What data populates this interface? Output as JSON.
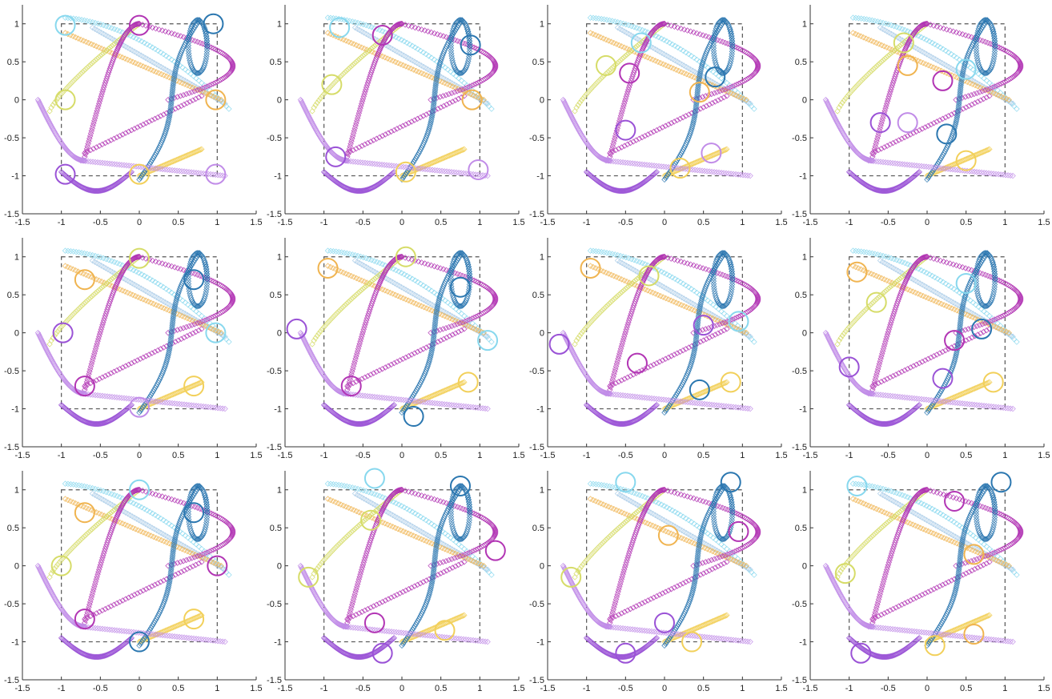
{
  "figure": {
    "colors": {
      "cyan": "#88d8ee",
      "light_blue": "#a9cbe8",
      "blue": "#2b77b0",
      "yellow": "#f2d05a",
      "lime": "#d6dc68",
      "orange": "#f0b450",
      "magenta": "#b235b4",
      "violet": "#9a52d6",
      "lavender": "#c18ce8",
      "frame": "#555555"
    }
  },
  "chart_data": [
    {
      "type": "scatter",
      "panel": 1,
      "xlim": [
        -1.5,
        1.5
      ],
      "ylim": [
        -1.5,
        1.25
      ],
      "xticks": [
        "-1.5",
        "-1",
        "-0.5",
        "0",
        "0.5",
        "1",
        "1.5"
      ],
      "yticks": [
        "-1.5",
        "-1",
        "-0.5",
        "0",
        "0.5",
        "1"
      ],
      "circles": [
        {
          "x": -0.95,
          "y": 0.98,
          "color": "cyan"
        },
        {
          "x": 0.0,
          "y": 0.98,
          "color": "magenta"
        },
        {
          "x": 0.95,
          "y": 1.0,
          "color": "blue"
        },
        {
          "x": -0.95,
          "y": 0.0,
          "color": "lime"
        },
        {
          "x": 0.98,
          "y": 0.0,
          "color": "orange"
        },
        {
          "x": -0.95,
          "y": -0.98,
          "color": "violet"
        },
        {
          "x": 0.0,
          "y": -0.98,
          "color": "yellow"
        },
        {
          "x": 0.98,
          "y": -0.98,
          "color": "lavender"
        }
      ]
    },
    {
      "type": "scatter",
      "panel": 2,
      "xlim": [
        -1.5,
        1.5
      ],
      "ylim": [
        -1.5,
        1.25
      ],
      "xticks": [
        "-1.5",
        "-1",
        "-0.5",
        "0",
        "0.5",
        "1",
        "1.5"
      ],
      "yticks": [
        "-1.5",
        "-1",
        "-0.5",
        "0",
        "0.5",
        "1"
      ],
      "circles": [
        {
          "x": -0.8,
          "y": 0.95,
          "color": "cyan"
        },
        {
          "x": -0.25,
          "y": 0.85,
          "color": "magenta"
        },
        {
          "x": 0.88,
          "y": 0.72,
          "color": "blue"
        },
        {
          "x": -0.9,
          "y": 0.2,
          "color": "lime"
        },
        {
          "x": 0.9,
          "y": 0.0,
          "color": "orange"
        },
        {
          "x": -0.85,
          "y": -0.75,
          "color": "violet"
        },
        {
          "x": 0.05,
          "y": -0.95,
          "color": "yellow"
        },
        {
          "x": 0.98,
          "y": -0.92,
          "color": "lavender"
        }
      ]
    },
    {
      "type": "scatter",
      "panel": 3,
      "xlim": [
        -1.5,
        1.5
      ],
      "ylim": [
        -1.5,
        1.25
      ],
      "xticks": [
        "-1.5",
        "-1",
        "-0.5",
        "0",
        "0.5",
        "1",
        "1.5"
      ],
      "yticks": [
        "-1.5",
        "-1",
        "-0.5",
        "0",
        "0.5",
        "1"
      ],
      "circles": [
        {
          "x": -0.3,
          "y": 0.75,
          "color": "cyan"
        },
        {
          "x": -0.45,
          "y": 0.35,
          "color": "magenta"
        },
        {
          "x": 0.65,
          "y": 0.3,
          "color": "blue"
        },
        {
          "x": -0.75,
          "y": 0.45,
          "color": "lime"
        },
        {
          "x": 0.45,
          "y": 0.1,
          "color": "orange"
        },
        {
          "x": -0.5,
          "y": -0.4,
          "color": "violet"
        },
        {
          "x": 0.2,
          "y": -0.9,
          "color": "yellow"
        },
        {
          "x": 0.6,
          "y": -0.7,
          "color": "lavender"
        }
      ]
    },
    {
      "type": "scatter",
      "panel": 4,
      "xlim": [
        -1.5,
        1.5
      ],
      "ylim": [
        -1.5,
        1.25
      ],
      "xticks": [
        "-1.5",
        "-1",
        "-0.5",
        "0",
        "0.5",
        "1",
        "1.5"
      ],
      "yticks": [
        "-1.5",
        "-1",
        "-0.5",
        "0",
        "0.5",
        "1"
      ],
      "circles": [
        {
          "x": 0.5,
          "y": 0.4,
          "color": "cyan"
        },
        {
          "x": 0.2,
          "y": 0.25,
          "color": "magenta"
        },
        {
          "x": 0.25,
          "y": -0.45,
          "color": "blue"
        },
        {
          "x": -0.3,
          "y": 0.75,
          "color": "lime"
        },
        {
          "x": -0.25,
          "y": 0.45,
          "color": "orange"
        },
        {
          "x": -0.6,
          "y": -0.3,
          "color": "violet"
        },
        {
          "x": 0.5,
          "y": -0.8,
          "color": "yellow"
        },
        {
          "x": -0.25,
          "y": -0.3,
          "color": "lavender"
        }
      ]
    },
    {
      "type": "scatter",
      "panel": 5,
      "xlim": [
        -1.5,
        1.5
      ],
      "ylim": [
        -1.5,
        1.25
      ],
      "xticks": [
        "-1.5",
        "-1",
        "-0.5",
        "0",
        "0.5",
        "1",
        "1.5"
      ],
      "yticks": [
        "-1.5",
        "-1",
        "-0.5",
        "0",
        "0.5",
        "1"
      ],
      "circles": [
        {
          "x": 0.98,
          "y": 0.0,
          "color": "cyan"
        },
        {
          "x": -0.7,
          "y": -0.7,
          "color": "magenta"
        },
        {
          "x": 0.7,
          "y": 0.7,
          "color": "blue"
        },
        {
          "x": 0.0,
          "y": 0.98,
          "color": "lime"
        },
        {
          "x": -0.7,
          "y": 0.7,
          "color": "orange"
        },
        {
          "x": -0.98,
          "y": 0.0,
          "color": "violet"
        },
        {
          "x": 0.7,
          "y": -0.7,
          "color": "yellow"
        },
        {
          "x": 0.0,
          "y": -0.98,
          "color": "lavender"
        }
      ]
    },
    {
      "type": "scatter",
      "panel": 6,
      "xlim": [
        -1.5,
        1.5
      ],
      "ylim": [
        -1.5,
        1.25
      ],
      "xticks": [
        "-1.5",
        "-1",
        "-0.5",
        "0",
        "0.5",
        "1",
        "1.5"
      ],
      "yticks": [
        "-1.5",
        "-1",
        "-0.5",
        "0",
        "0.5",
        "1"
      ],
      "circles": [
        {
          "x": 1.1,
          "y": -0.1,
          "color": "cyan"
        },
        {
          "x": -0.65,
          "y": -0.7,
          "color": "magenta"
        },
        {
          "x": 0.75,
          "y": 0.6,
          "color": "blue"
        },
        {
          "x": 0.05,
          "y": 1.0,
          "color": "lime"
        },
        {
          "x": -0.95,
          "y": 0.85,
          "color": "orange"
        },
        {
          "x": -1.35,
          "y": 0.05,
          "color": "violet"
        },
        {
          "x": 0.85,
          "y": -0.65,
          "color": "yellow"
        },
        {
          "x": 0.15,
          "y": -1.1,
          "color": "blue"
        }
      ]
    },
    {
      "type": "scatter",
      "panel": 7,
      "xlim": [
        -1.5,
        1.5
      ],
      "ylim": [
        -1.5,
        1.25
      ],
      "xticks": [
        "-1.5",
        "-1",
        "-0.5",
        "0",
        "0.5",
        "1",
        "1.5"
      ],
      "yticks": [
        "-1.5",
        "-1",
        "-0.5",
        "0",
        "0.5",
        "1"
      ],
      "circles": [
        {
          "x": 0.95,
          "y": 0.15,
          "color": "cyan"
        },
        {
          "x": -0.35,
          "y": -0.4,
          "color": "magenta"
        },
        {
          "x": 0.45,
          "y": -0.75,
          "color": "blue"
        },
        {
          "x": -0.2,
          "y": 0.75,
          "color": "lime"
        },
        {
          "x": -0.95,
          "y": 0.85,
          "color": "orange"
        },
        {
          "x": -1.35,
          "y": -0.15,
          "color": "violet"
        },
        {
          "x": 0.85,
          "y": -0.65,
          "color": "yellow"
        },
        {
          "x": 0.5,
          "y": 0.1,
          "color": "violet"
        }
      ]
    },
    {
      "type": "scatter",
      "panel": 8,
      "xlim": [
        -1.5,
        1.5
      ],
      "ylim": [
        -1.5,
        1.25
      ],
      "xticks": [
        "-1.5",
        "-1",
        "-0.5",
        "0",
        "0.5",
        "1",
        "1.5"
      ],
      "yticks": [
        "-1.5",
        "-1",
        "-0.5",
        "0",
        "0.5",
        "1"
      ],
      "circles": [
        {
          "x": 0.5,
          "y": 0.65,
          "color": "cyan"
        },
        {
          "x": 0.35,
          "y": -0.1,
          "color": "magenta"
        },
        {
          "x": 0.7,
          "y": 0.05,
          "color": "blue"
        },
        {
          "x": -0.65,
          "y": 0.4,
          "color": "lime"
        },
        {
          "x": -0.9,
          "y": 0.8,
          "color": "orange"
        },
        {
          "x": -1.0,
          "y": -0.45,
          "color": "violet"
        },
        {
          "x": 0.85,
          "y": -0.65,
          "color": "yellow"
        },
        {
          "x": 0.2,
          "y": -0.6,
          "color": "violet"
        }
      ]
    },
    {
      "type": "scatter",
      "panel": 9,
      "xlim": [
        -1.5,
        1.5
      ],
      "ylim": [
        -1.5,
        1.25
      ],
      "xticks": [
        "-1.5",
        "-1",
        "-0.5",
        "0",
        "0.5",
        "1",
        "1.5"
      ],
      "yticks": [
        "-1.5",
        "-1",
        "-0.5",
        "0",
        "0.5",
        "1"
      ],
      "circles": [
        {
          "x": 0.0,
          "y": 1.0,
          "color": "cyan"
        },
        {
          "x": -0.7,
          "y": -0.7,
          "color": "magenta"
        },
        {
          "x": 0.7,
          "y": 0.7,
          "color": "blue"
        },
        {
          "x": -1.0,
          "y": 0.0,
          "color": "lime"
        },
        {
          "x": -0.7,
          "y": 0.7,
          "color": "orange"
        },
        {
          "x": 1.0,
          "y": 0.0,
          "color": "magenta"
        },
        {
          "x": 0.7,
          "y": -0.7,
          "color": "yellow"
        },
        {
          "x": 0.0,
          "y": -1.0,
          "color": "blue"
        }
      ]
    },
    {
      "type": "scatter",
      "panel": 10,
      "xlim": [
        -1.5,
        1.5
      ],
      "ylim": [
        -1.5,
        1.25
      ],
      "xticks": [
        "-1.5",
        "-1",
        "-0.5",
        "0",
        "0.5",
        "1",
        "1.5"
      ],
      "yticks": [
        "-1.5",
        "-1",
        "-0.5",
        "0",
        "0.5",
        "1"
      ],
      "circles": [
        {
          "x": -0.35,
          "y": 1.15,
          "color": "cyan"
        },
        {
          "x": 1.2,
          "y": 0.2,
          "color": "magenta"
        },
        {
          "x": 0.75,
          "y": 1.05,
          "color": "blue"
        },
        {
          "x": -1.2,
          "y": -0.15,
          "color": "lime"
        },
        {
          "x": -0.4,
          "y": 0.6,
          "color": "lime"
        },
        {
          "x": -0.35,
          "y": -0.75,
          "color": "magenta"
        },
        {
          "x": 0.55,
          "y": -0.85,
          "color": "yellow"
        },
        {
          "x": -0.25,
          "y": -1.15,
          "color": "violet"
        }
      ]
    },
    {
      "type": "scatter",
      "panel": 11,
      "xlim": [
        -1.5,
        1.5
      ],
      "ylim": [
        -1.5,
        1.25
      ],
      "xticks": [
        "-1.5",
        "-1",
        "-0.5",
        "0",
        "0.5",
        "1",
        "1.5"
      ],
      "yticks": [
        "-1.5",
        "-1",
        "-0.5",
        "0",
        "0.5",
        "1"
      ],
      "circles": [
        {
          "x": -0.5,
          "y": 1.1,
          "color": "cyan"
        },
        {
          "x": 0.0,
          "y": -0.75,
          "color": "violet"
        },
        {
          "x": 0.85,
          "y": 1.1,
          "color": "blue"
        },
        {
          "x": -1.2,
          "y": -0.15,
          "color": "lime"
        },
        {
          "x": 0.05,
          "y": 0.4,
          "color": "orange"
        },
        {
          "x": 0.95,
          "y": 0.45,
          "color": "magenta"
        },
        {
          "x": 0.35,
          "y": -1.0,
          "color": "yellow"
        },
        {
          "x": -0.5,
          "y": -1.15,
          "color": "violet"
        }
      ]
    },
    {
      "type": "scatter",
      "panel": 12,
      "xlim": [
        -1.5,
        1.5
      ],
      "ylim": [
        -1.5,
        1.25
      ],
      "xticks": [
        "-1.5",
        "-1",
        "-0.5",
        "0",
        "0.5",
        "1",
        "1.5"
      ],
      "yticks": [
        "-1.5",
        "-1",
        "-0.5",
        "0",
        "0.5",
        "1"
      ],
      "circles": [
        {
          "x": -0.9,
          "y": 1.05,
          "color": "cyan"
        },
        {
          "x": 0.35,
          "y": 0.85,
          "color": "magenta"
        },
        {
          "x": 0.95,
          "y": 1.1,
          "color": "blue"
        },
        {
          "x": -1.05,
          "y": -0.1,
          "color": "lime"
        },
        {
          "x": 0.6,
          "y": 0.15,
          "color": "orange"
        },
        {
          "x": -0.85,
          "y": -1.15,
          "color": "violet"
        },
        {
          "x": 0.1,
          "y": -1.05,
          "color": "yellow"
        },
        {
          "x": 0.6,
          "y": -0.9,
          "color": "orange"
        }
      ]
    }
  ]
}
